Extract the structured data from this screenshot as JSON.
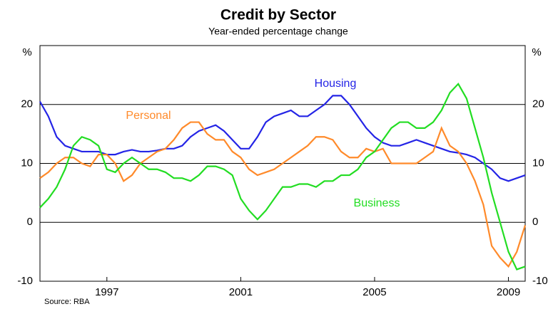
{
  "chart_data": {
    "type": "line",
    "title": "Credit by Sector",
    "subtitle": "Year-ended percentage change",
    "y_unit_left": "%",
    "y_unit_right": "%",
    "source": "Source: RBA",
    "x": [
      1995,
      1995.25,
      1995.5,
      1995.75,
      1996,
      1996.25,
      1996.5,
      1996.75,
      1997,
      1997.25,
      1997.5,
      1997.75,
      1998,
      1998.25,
      1998.5,
      1998.75,
      1999,
      1999.25,
      1999.5,
      1999.75,
      2000,
      2000.25,
      2000.5,
      2000.75,
      2001,
      2001.25,
      2001.5,
      2001.75,
      2002,
      2002.25,
      2002.5,
      2002.75,
      2003,
      2003.25,
      2003.5,
      2003.75,
      2004,
      2004.25,
      2004.5,
      2004.75,
      2005,
      2005.25,
      2005.5,
      2005.75,
      2006,
      2006.25,
      2006.5,
      2006.75,
      2007,
      2007.25,
      2007.5,
      2007.75,
      2008,
      2008.25,
      2008.5,
      2008.75,
      2009,
      2009.25,
      2009.5
    ],
    "series": [
      {
        "name": "Housing",
        "color": "#2424e6",
        "values": [
          20.5,
          18,
          14.5,
          13,
          12.5,
          12,
          12,
          12,
          11.5,
          11.5,
          12,
          12.3,
          12,
          12,
          12.2,
          12.5,
          12.5,
          13,
          14.5,
          15.5,
          16,
          16.5,
          15.5,
          14,
          12.5,
          12.5,
          14.5,
          17,
          18,
          18.5,
          19,
          18,
          18,
          19,
          20,
          21.5,
          21.5,
          20,
          18,
          16,
          14.5,
          13.5,
          13,
          13,
          13.5,
          14,
          13.5,
          13,
          12.5,
          12,
          11.8,
          11.5,
          11,
          10,
          9,
          7.5,
          7,
          7.5,
          8
        ]
      },
      {
        "name": "Personal",
        "color": "#ff8a2a",
        "values": [
          7.5,
          8.5,
          10,
          11,
          11,
          10,
          9.5,
          11.5,
          11.5,
          10,
          7,
          8,
          10,
          11,
          12,
          12.5,
          14,
          16,
          17,
          17,
          15,
          14,
          14,
          12,
          11,
          9,
          8,
          8.5,
          9,
          10,
          11,
          12,
          13,
          14.5,
          14.5,
          14,
          12,
          11,
          11,
          12.5,
          12,
          12.5,
          10,
          10,
          10,
          10,
          11,
          12,
          16,
          13,
          12,
          10,
          7,
          3,
          -4,
          -6,
          -7.5,
          -5,
          -0.5
        ]
      },
      {
        "name": "Business",
        "color": "#22dd22",
        "values": [
          2.5,
          4,
          6,
          9,
          13,
          14.5,
          14,
          13,
          9,
          8.5,
          10,
          11,
          10,
          9,
          9,
          8.5,
          7.5,
          7.5,
          7,
          8,
          9.5,
          9.5,
          9,
          8,
          4,
          2,
          0.5,
          2,
          4,
          6,
          6,
          6.5,
          6.5,
          6,
          7,
          7,
          8,
          8,
          9,
          11,
          12,
          14,
          16,
          17,
          17,
          16,
          16,
          17,
          19,
          22,
          23.5,
          21,
          16,
          11,
          5,
          0,
          -5,
          -8,
          -7.5
        ]
      }
    ],
    "xlim": [
      1995,
      2009.5
    ],
    "xticks": [
      1997,
      2001,
      2005,
      2009
    ],
    "ylim": [
      -10,
      30
    ],
    "yticks": [
      -10,
      0,
      10,
      20
    ],
    "grid": true
  }
}
